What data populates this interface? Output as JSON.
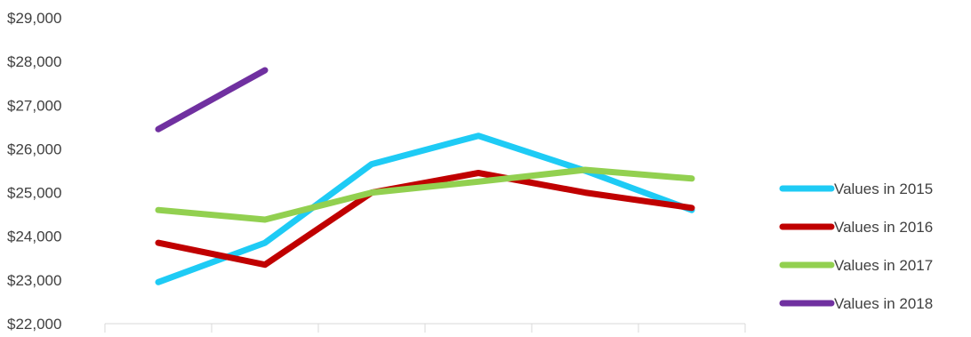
{
  "chart_data": {
    "type": "line",
    "categories": [
      "",
      "",
      "",
      "",
      "",
      ""
    ],
    "ylim": [
      22000,
      29000
    ],
    "ytick_labels": [
      "$22,000",
      "$23,000",
      "$24,000",
      "$25,000",
      "$26,000",
      "$27,000",
      "$28,000",
      "$29,000"
    ],
    "ytick_values": [
      22000,
      23000,
      24000,
      25000,
      26000,
      27000,
      28000,
      29000
    ],
    "grid": false,
    "legend_position": "right",
    "series": [
      {
        "name": "Values in 2015",
        "color": "#1ECBF5",
        "values": [
          22950,
          23850,
          25650,
          26300,
          25500,
          24600
        ]
      },
      {
        "name": "Values in 2016",
        "color": "#C00000",
        "values": [
          23850,
          23350,
          25000,
          25450,
          25000,
          24650
        ]
      },
      {
        "name": "Values in 2017",
        "color": "#92D050",
        "values": [
          24600,
          24380,
          25000,
          25250,
          25520,
          25320
        ]
      },
      {
        "name": "Values in 2018",
        "color": "#7030A0",
        "values": [
          26450,
          27800,
          null,
          null,
          null,
          null
        ]
      }
    ]
  }
}
